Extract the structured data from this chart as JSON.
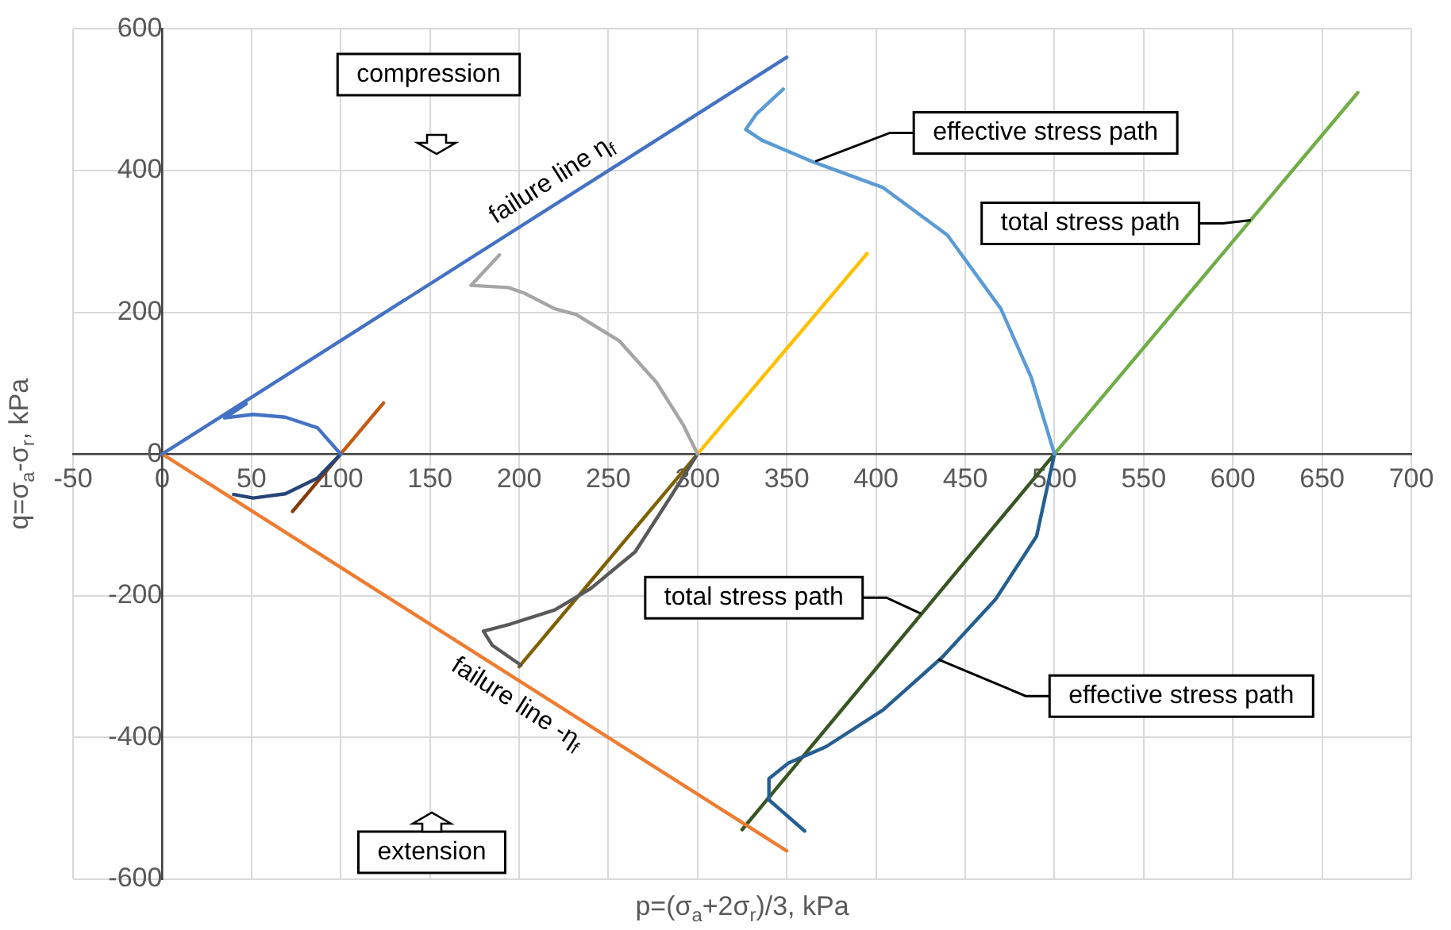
{
  "chart_data": {
    "type": "line",
    "xlabel": "p=(σ$_{a}$+2σ$_{r}$)/3, kPa",
    "ylabel": "q=σ$_{a}$-σ$_{r}$, kPa",
    "xlim": [
      -50,
      700
    ],
    "xticks": [
      -50,
      0,
      50,
      100,
      150,
      200,
      250,
      300,
      350,
      400,
      450,
      500,
      550,
      600,
      650,
      700
    ],
    "ylim": [
      -600,
      600
    ],
    "yticks": [
      -600,
      -400,
      -200,
      0,
      200,
      400,
      600
    ],
    "grid": true,
    "legend": false,
    "marker": "none",
    "line_style": "solid",
    "series": [
      {
        "color": "#4472c4",
        "x": [
          0,
          350
        ],
        "values": [
          0,
          560
        ]
      },
      {
        "color": "#ed7d31",
        "x": [
          0,
          350
        ],
        "values": [
          0,
          -560
        ]
      },
      {
        "color": "#4472c4",
        "x": [
          100,
          87,
          69,
          51,
          35,
          47
        ],
        "values": [
          0,
          37,
          52,
          56,
          51,
          71
        ]
      },
      {
        "color": "#264478",
        "x": [
          100,
          87,
          69,
          51,
          40
        ],
        "values": [
          0,
          -34,
          -56,
          -62,
          -57
        ]
      },
      {
        "color": "#c55a11",
        "x": [
          100,
          124
        ],
        "values": [
          0,
          72
        ]
      },
      {
        "color": "#843c0c",
        "x": [
          100,
          73
        ],
        "values": [
          0,
          -81
        ]
      },
      {
        "color": "#a5a5a5",
        "x": [
          300,
          292,
          277,
          256,
          232,
          220,
          203,
          194,
          173,
          189
        ],
        "values": [
          0,
          41,
          101,
          160,
          197,
          205,
          227,
          235,
          238,
          281
        ]
      },
      {
        "color": "#595959",
        "x": [
          300,
          285,
          265,
          240,
          220,
          195,
          180,
          185,
          201
        ],
        "values": [
          0,
          -60,
          -138,
          -190,
          -220,
          -240,
          -250,
          -270,
          -298
        ]
      },
      {
        "color": "#ffc000",
        "x": [
          300,
          395
        ],
        "values": [
          0,
          283
        ]
      },
      {
        "color": "#7f6000",
        "x": [
          300,
          200
        ],
        "values": [
          0,
          -300
        ]
      },
      {
        "color": "#5b9bd5",
        "x": [
          500,
          487,
          470,
          440,
          404,
          364,
          336,
          327,
          333,
          348
        ],
        "values": [
          0,
          108,
          205,
          309,
          376,
          413,
          443,
          458,
          480,
          515
        ]
      },
      {
        "color": "#255e91",
        "x": [
          500,
          490,
          467,
          437,
          404,
          372,
          351,
          340,
          340,
          360
        ],
        "values": [
          0,
          -116,
          -205,
          -287,
          -361,
          -413,
          -436,
          -458,
          -488,
          -532
        ]
      },
      {
        "color": "#70ad47",
        "x": [
          500,
          670
        ],
        "values": [
          0,
          510
        ]
      },
      {
        "color": "#375623",
        "x": [
          500,
          325
        ],
        "values": [
          0,
          -530
        ]
      }
    ],
    "annotations": [
      "compression",
      "extension",
      {
        "text": "failure line η$_{f}$",
        "x": 225,
        "y": 360
      },
      {
        "text": "failure line -η$_{f}$",
        "x": 205,
        "y": -328
      },
      {
        "text": "effective stress path",
        "x": 366,
        "y": 413
      },
      {
        "text": "total stress path",
        "x": 610,
        "y": 330
      },
      {
        "text": "total stress path",
        "x": 425,
        "y": -225
      },
      {
        "text": "effective stress path",
        "x": 435,
        "y": -290
      }
    ]
  }
}
